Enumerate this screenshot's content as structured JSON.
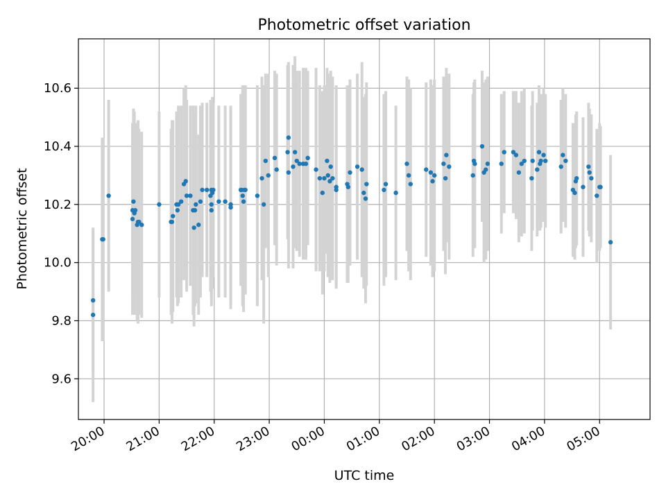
{
  "chart_data": {
    "type": "scatter",
    "title": "Photometric offset variation",
    "xlabel": "UTC time",
    "ylabel": "Photometric offset",
    "grid": true,
    "legend": "none",
    "xlim": [
      "19:32",
      "05:55"
    ],
    "ylim": [
      9.46,
      10.77
    ],
    "x_ticks": [
      "20:00",
      "21:00",
      "22:00",
      "23:00",
      "00:00",
      "01:00",
      "02:00",
      "03:00",
      "04:00",
      "05:00"
    ],
    "y_ticks": [
      "9.6",
      "9.8",
      "10.0",
      "10.2",
      "10.4",
      "10.6"
    ],
    "colors": {
      "point": "#1f77b4",
      "errorbar": "#d3d3d3",
      "grid": "#b0b0b0"
    },
    "series": [
      {
        "points": [
          {
            "x": "19:48",
            "y": 9.82,
            "err": 0.3
          },
          {
            "x": "19:48",
            "y": 9.87,
            "err": 0.25
          },
          {
            "x": "19:58",
            "y": 10.08,
            "err": 0.35
          },
          {
            "x": "19:59",
            "y": 10.08,
            "err": 0.35
          },
          {
            "x": "20:05",
            "y": 10.23,
            "err": 0.33
          },
          {
            "x": "20:31",
            "y": 10.18,
            "err": 0.3
          },
          {
            "x": "20:31",
            "y": 10.15,
            "err": 0.33
          },
          {
            "x": "20:32",
            "y": 10.21,
            "err": 0.32
          },
          {
            "x": "20:33",
            "y": 10.17,
            "err": 0.35
          },
          {
            "x": "20:34",
            "y": 10.18,
            "err": 0.3
          },
          {
            "x": "20:36",
            "y": 10.13,
            "err": 0.33
          },
          {
            "x": "20:37",
            "y": 10.14,
            "err": 0.35
          },
          {
            "x": "20:38",
            "y": 10.14,
            "err": 0.32
          },
          {
            "x": "20:41",
            "y": 10.13,
            "err": 0.32
          },
          {
            "x": "21:00",
            "y": 10.2,
            "err": 0.32
          },
          {
            "x": "21:13",
            "y": 10.14,
            "err": 0.32
          },
          {
            "x": "21:14",
            "y": 10.14,
            "err": 0.35
          },
          {
            "x": "21:15",
            "y": 10.16,
            "err": 0.33
          },
          {
            "x": "21:19",
            "y": 10.2,
            "err": 0.32
          },
          {
            "x": "21:20",
            "y": 10.18,
            "err": 0.33
          },
          {
            "x": "21:21",
            "y": 10.2,
            "err": 0.34
          },
          {
            "x": "21:24",
            "y": 10.21,
            "err": 0.33
          },
          {
            "x": "21:27",
            "y": 10.27,
            "err": 0.33
          },
          {
            "x": "21:29",
            "y": 10.28,
            "err": 0.33
          },
          {
            "x": "21:30",
            "y": 10.23,
            "err": 0.33
          },
          {
            "x": "21:34",
            "y": 10.23,
            "err": 0.31
          },
          {
            "x": "21:37",
            "y": 10.18,
            "err": 0.36
          },
          {
            "x": "21:38",
            "y": 10.12,
            "err": 0.34
          },
          {
            "x": "21:39",
            "y": 10.18,
            "err": 0.33
          },
          {
            "x": "21:40",
            "y": 10.2,
            "err": 0.34
          },
          {
            "x": "21:43",
            "y": 10.13,
            "err": 0.31
          },
          {
            "x": "21:45",
            "y": 10.21,
            "err": 0.33
          },
          {
            "x": "21:47",
            "y": 10.25,
            "err": 0.3
          },
          {
            "x": "21:52",
            "y": 10.25,
            "err": 0.3
          },
          {
            "x": "21:56",
            "y": 10.23,
            "err": 0.33
          },
          {
            "x": "21:57",
            "y": 10.25,
            "err": 0.3
          },
          {
            "x": "21:57",
            "y": 10.2,
            "err": 0.32
          },
          {
            "x": "21:57",
            "y": 10.18,
            "err": 0.33
          },
          {
            "x": "21:58",
            "y": 10.24,
            "err": 0.33
          },
          {
            "x": "21:59",
            "y": 10.25,
            "err": 0.3
          },
          {
            "x": "22:05",
            "y": 10.21,
            "err": 0.33
          },
          {
            "x": "22:12",
            "y": 10.21,
            "err": 0.33
          },
          {
            "x": "22:18",
            "y": 10.19,
            "err": 0.35
          },
          {
            "x": "22:18",
            "y": 10.2,
            "err": 0.33
          },
          {
            "x": "22:29",
            "y": 10.25,
            "err": 0.33
          },
          {
            "x": "22:30",
            "y": 10.25,
            "err": 0.33
          },
          {
            "x": "22:31",
            "y": 10.23,
            "err": 0.38
          },
          {
            "x": "22:32",
            "y": 10.21,
            "err": 0.38
          },
          {
            "x": "22:33",
            "y": 10.25,
            "err": 0.36
          },
          {
            "x": "22:34",
            "y": 10.25,
            "err": 0.36
          },
          {
            "x": "22:47",
            "y": 10.23,
            "err": 0.38
          },
          {
            "x": "22:52",
            "y": 10.29,
            "err": 0.35
          },
          {
            "x": "22:54",
            "y": 10.2,
            "err": 0.41
          },
          {
            "x": "22:56",
            "y": 10.35,
            "err": 0.3
          },
          {
            "x": "22:59",
            "y": 10.3,
            "err": 0.35
          },
          {
            "x": "23:06",
            "y": 10.36,
            "err": 0.3
          },
          {
            "x": "23:08",
            "y": 10.32,
            "err": 0.33
          },
          {
            "x": "23:20",
            "y": 10.38,
            "err": 0.3
          },
          {
            "x": "23:21",
            "y": 10.31,
            "err": 0.33
          },
          {
            "x": "23:21",
            "y": 10.43,
            "err": 0.26
          },
          {
            "x": "23:26",
            "y": 10.33,
            "err": 0.35
          },
          {
            "x": "23:28",
            "y": 10.38,
            "err": 0.33
          },
          {
            "x": "23:30",
            "y": 10.35,
            "err": 0.31
          },
          {
            "x": "23:33",
            "y": 10.34,
            "err": 0.32
          },
          {
            "x": "23:37",
            "y": 10.34,
            "err": 0.33
          },
          {
            "x": "23:40",
            "y": 10.34,
            "err": 0.33
          },
          {
            "x": "23:42",
            "y": 10.36,
            "err": 0.3
          },
          {
            "x": "23:51",
            "y": 10.32,
            "err": 0.35
          },
          {
            "x": "23:55",
            "y": 10.29,
            "err": 0.32
          },
          {
            "x": "23:58",
            "y": 10.24,
            "err": 0.35
          },
          {
            "x": "00:00",
            "y": 10.29,
            "err": 0.32
          },
          {
            "x": "00:03",
            "y": 10.35,
            "err": 0.32
          },
          {
            "x": "00:04",
            "y": 10.3,
            "err": 0.35
          },
          {
            "x": "00:06",
            "y": 10.28,
            "err": 0.35
          },
          {
            "x": "00:07",
            "y": 10.33,
            "err": 0.33
          },
          {
            "x": "00:09",
            "y": 10.29,
            "err": 0.35
          },
          {
            "x": "00:13",
            "y": 10.26,
            "err": 0.35
          },
          {
            "x": "00:13",
            "y": 10.25,
            "err": 0.33
          },
          {
            "x": "00:25",
            "y": 10.27,
            "err": 0.34
          },
          {
            "x": "00:26",
            "y": 10.26,
            "err": 0.33
          },
          {
            "x": "00:28",
            "y": 10.31,
            "err": 0.32
          },
          {
            "x": "00:36",
            "y": 10.33,
            "err": 0.32
          },
          {
            "x": "00:41",
            "y": 10.32,
            "err": 0.37
          },
          {
            "x": "00:43",
            "y": 10.24,
            "err": 0.33
          },
          {
            "x": "00:45",
            "y": 10.22,
            "err": 0.36
          },
          {
            "x": "00:46",
            "y": 10.27,
            "err": 0.35
          },
          {
            "x": "01:05",
            "y": 10.25,
            "err": 0.33
          },
          {
            "x": "01:07",
            "y": 10.27,
            "err": 0.32
          },
          {
            "x": "01:18",
            "y": 10.24,
            "err": 0.3
          },
          {
            "x": "01:30",
            "y": 10.34,
            "err": 0.3
          },
          {
            "x": "01:32",
            "y": 10.3,
            "err": 0.33
          },
          {
            "x": "01:34",
            "y": 10.27,
            "err": 0.33
          },
          {
            "x": "01:51",
            "y": 10.32,
            "err": 0.3
          },
          {
            "x": "01:56",
            "y": 10.31,
            "err": 0.32
          },
          {
            "x": "01:58",
            "y": 10.28,
            "err": 0.33
          },
          {
            "x": "02:00",
            "y": 10.3,
            "err": 0.33
          },
          {
            "x": "02:10",
            "y": 10.34,
            "err": 0.3
          },
          {
            "x": "02:12",
            "y": 10.29,
            "err": 0.33
          },
          {
            "x": "02:13",
            "y": 10.37,
            "err": 0.3
          },
          {
            "x": "02:16",
            "y": 10.33,
            "err": 0.32
          },
          {
            "x": "02:42",
            "y": 10.3,
            "err": 0.28
          },
          {
            "x": "02:43",
            "y": 10.35,
            "err": 0.27
          },
          {
            "x": "02:44",
            "y": 10.34,
            "err": 0.29
          },
          {
            "x": "02:52",
            "y": 10.4,
            "err": 0.26
          },
          {
            "x": "02:54",
            "y": 10.31,
            "err": 0.31
          },
          {
            "x": "02:56",
            "y": 10.32,
            "err": 0.31
          },
          {
            "x": "02:58",
            "y": 10.34,
            "err": 0.3
          },
          {
            "x": "03:13",
            "y": 10.34,
            "err": 0.24
          },
          {
            "x": "03:16",
            "y": 10.38,
            "err": 0.21
          },
          {
            "x": "03:26",
            "y": 10.38,
            "err": 0.21
          },
          {
            "x": "03:29",
            "y": 10.37,
            "err": 0.22
          },
          {
            "x": "03:32",
            "y": 10.31,
            "err": 0.24
          },
          {
            "x": "03:35",
            "y": 10.34,
            "err": 0.25
          },
          {
            "x": "03:38",
            "y": 10.35,
            "err": 0.25
          },
          {
            "x": "03:46",
            "y": 10.29,
            "err": 0.25
          },
          {
            "x": "03:47",
            "y": 10.35,
            "err": 0.24
          },
          {
            "x": "03:52",
            "y": 10.32,
            "err": 0.23
          },
          {
            "x": "03:54",
            "y": 10.38,
            "err": 0.23
          },
          {
            "x": "03:55",
            "y": 10.34,
            "err": 0.23
          },
          {
            "x": "03:56",
            "y": 10.35,
            "err": 0.23
          },
          {
            "x": "03:59",
            "y": 10.37,
            "err": 0.23
          },
          {
            "x": "04:01",
            "y": 10.35,
            "err": 0.23
          },
          {
            "x": "04:18",
            "y": 10.33,
            "err": 0.23
          },
          {
            "x": "04:20",
            "y": 10.37,
            "err": 0.23
          },
          {
            "x": "04:23",
            "y": 10.35,
            "err": 0.23
          },
          {
            "x": "04:31",
            "y": 10.25,
            "err": 0.23
          },
          {
            "x": "04:33",
            "y": 10.24,
            "err": 0.23
          },
          {
            "x": "04:34",
            "y": 10.28,
            "err": 0.23
          },
          {
            "x": "04:35",
            "y": 10.29,
            "err": 0.23
          },
          {
            "x": "04:42",
            "y": 10.26,
            "err": 0.24
          },
          {
            "x": "04:48",
            "y": 10.33,
            "err": 0.22
          },
          {
            "x": "04:49",
            "y": 10.31,
            "err": 0.22
          },
          {
            "x": "04:51",
            "y": 10.29,
            "err": 0.22
          },
          {
            "x": "04:57",
            "y": 10.23,
            "err": 0.23
          },
          {
            "x": "05:00",
            "y": 10.26,
            "err": 0.22
          },
          {
            "x": "05:01",
            "y": 10.26,
            "err": 0.21
          },
          {
            "x": "05:12",
            "y": 10.07,
            "err": 0.3
          }
        ]
      }
    ]
  }
}
